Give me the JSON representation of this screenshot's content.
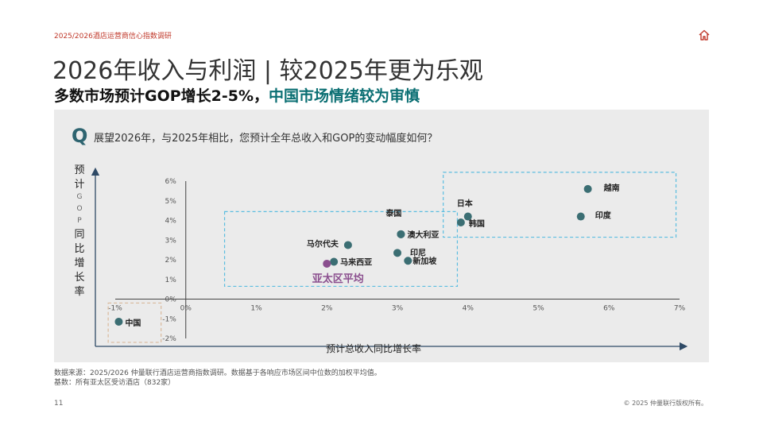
{
  "header": {
    "report_label": "2025/2026酒店运营商信心指数调研",
    "title": "2026年收入与利润 | 较2025年更为乐观",
    "subtitle_main": "多数市场预计GOP增长2-5%，",
    "subtitle_accent": "中国市场情绪较为审慎"
  },
  "question": {
    "mark": "Q",
    "text": "展望2026年，与2025年相比，您预计全年总收入和GOP的变动幅度如何？"
  },
  "chart_data": {
    "type": "scatter",
    "xlabel": "预计总收入同比增长率",
    "ylabel": "预计GOP同比增长率",
    "xlim": [
      -1,
      7
    ],
    "ylim": [
      -2,
      6
    ],
    "x_ticks": [
      "-1%",
      "0%",
      "1%",
      "2%",
      "3%",
      "4%",
      "5%",
      "6%",
      "7%"
    ],
    "y_ticks": [
      "-2%",
      "-1%",
      "0%",
      "1%",
      "2%",
      "3%",
      "4%",
      "5%",
      "6%"
    ],
    "points": [
      {
        "label": "越南",
        "x": 5.7,
        "y": 5.6
      },
      {
        "label": "印度",
        "x": 5.6,
        "y": 4.2
      },
      {
        "label": "日本",
        "x": 4.0,
        "y": 4.2
      },
      {
        "label": "韩国",
        "x": 3.9,
        "y": 3.9
      },
      {
        "label": "泰国",
        "x": 3.05,
        "y": 3.3
      },
      {
        "label": "澳大利亚",
        "x": 3.05,
        "y": 3.3
      },
      {
        "label": "马尔代夫",
        "x": 2.3,
        "y": 2.75
      },
      {
        "label": "印尼",
        "x": 3.0,
        "y": 2.35
      },
      {
        "label": "新加坡",
        "x": 3.15,
        "y": 1.95
      },
      {
        "label": "马来西亚",
        "x": 2.1,
        "y": 1.9
      },
      {
        "label": "亚太区平均",
        "x": 2.0,
        "y": 1.8,
        "highlight": true
      },
      {
        "label": "中国",
        "x": -0.95,
        "y": -1.15
      }
    ],
    "colors": {
      "point": "#3b6e73",
      "average": "#8a4e8e",
      "box": "#5bbde0",
      "china_box": "#d9b99b"
    }
  },
  "footer": {
    "source_line1": "数据来源：2025/2026 仲量联行酒店运营商指数调研。数据基于各响应市场区间中位数的加权平均值。",
    "source_line2": "基数：所有亚太区受访酒店（832家）",
    "page_number": "11",
    "copyright": "© 2025 仲量联行版权所有。"
  }
}
